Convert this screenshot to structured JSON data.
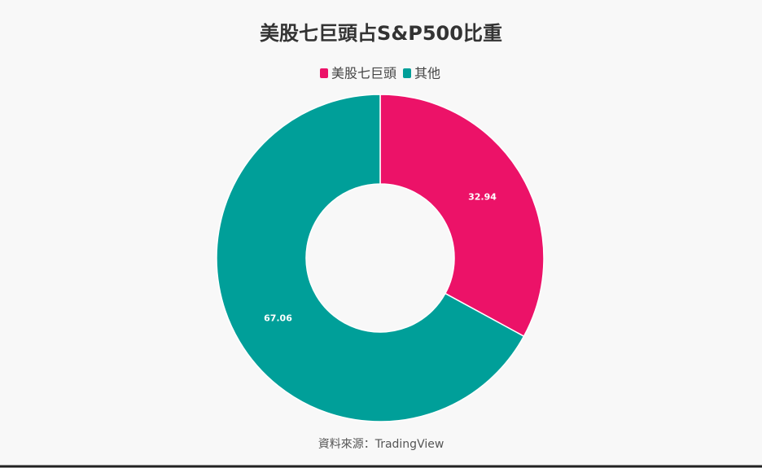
{
  "chart_data": {
    "type": "donut",
    "title": "美股七巨頭占S&P500比重",
    "categories": [
      "美股七巨頭",
      "其他"
    ],
    "values": [
      32.94,
      67.06
    ],
    "colors": [
      "#ec1268",
      "#009f99"
    ],
    "source": "資料來源：TradingView"
  }
}
